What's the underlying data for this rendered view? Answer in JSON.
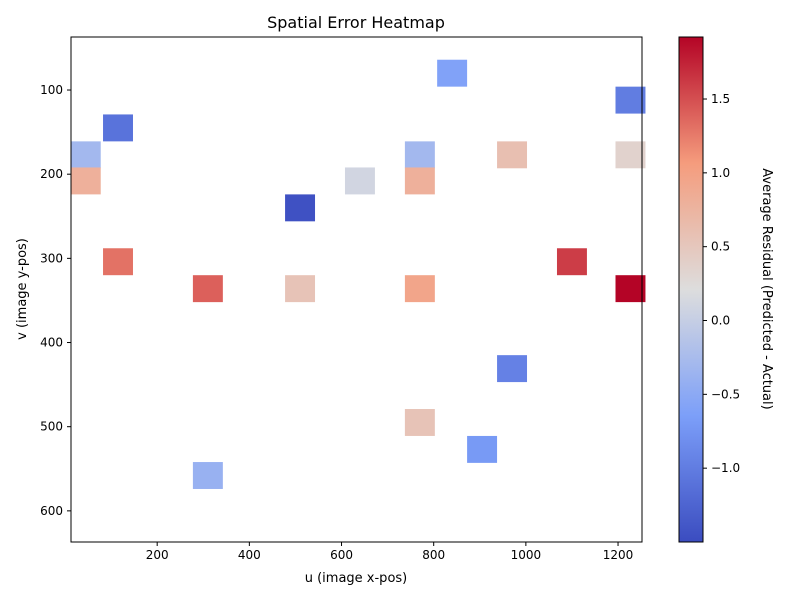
{
  "chart_data": {
    "type": "heatmap",
    "title": "Spatial Error Heatmap",
    "xlabel": "u (image x-pos)",
    "ylabel": "v (image y-pos)",
    "xlim": [
      13,
      1252
    ],
    "ylim": [
      637,
      37
    ],
    "y_inverted": true,
    "grid": false,
    "xticks": [
      200,
      400,
      600,
      800,
      1000,
      1200
    ],
    "yticks": [
      100,
      200,
      300,
      400,
      500,
      600
    ],
    "cell_size": {
      "u": 65,
      "v": 32
    },
    "colorbar": {
      "label": "Average Residual (Predicted - Actual)",
      "colormap": "coolwarm",
      "vmin": -1.5,
      "vmax": 1.92,
      "ticks": [
        -1.0,
        -0.5,
        0.0,
        0.5,
        1.0,
        1.5
      ]
    },
    "cells": [
      {
        "u": 840,
        "v": 80,
        "value": -0.6
      },
      {
        "u": 1227,
        "v": 112,
        "value": -1.0
      },
      {
        "u": 115,
        "v": 145,
        "value": -1.1
      },
      {
        "u": 45,
        "v": 177,
        "value": -0.3
      },
      {
        "u": 770,
        "v": 177,
        "value": -0.3
      },
      {
        "u": 970,
        "v": 177,
        "value": 0.6
      },
      {
        "u": 1227,
        "v": 177,
        "value": 0.35
      },
      {
        "u": 45,
        "v": 208,
        "value": 0.8
      },
      {
        "u": 640,
        "v": 208,
        "value": 0.1
      },
      {
        "u": 770,
        "v": 208,
        "value": 0.8
      },
      {
        "u": 510,
        "v": 240,
        "value": -1.45
      },
      {
        "u": 115,
        "v": 304,
        "value": 1.3
      },
      {
        "u": 1100,
        "v": 304,
        "value": 1.6
      },
      {
        "u": 310,
        "v": 336,
        "value": 1.4
      },
      {
        "u": 510,
        "v": 336,
        "value": 0.55
      },
      {
        "u": 770,
        "v": 336,
        "value": 0.95
      },
      {
        "u": 1227,
        "v": 336,
        "value": 1.92
      },
      {
        "u": 970,
        "v": 431,
        "value": -0.95
      },
      {
        "u": 770,
        "v": 495,
        "value": 0.55
      },
      {
        "u": 905,
        "v": 527,
        "value": -0.7
      },
      {
        "u": 310,
        "v": 558,
        "value": -0.4
      }
    ]
  }
}
